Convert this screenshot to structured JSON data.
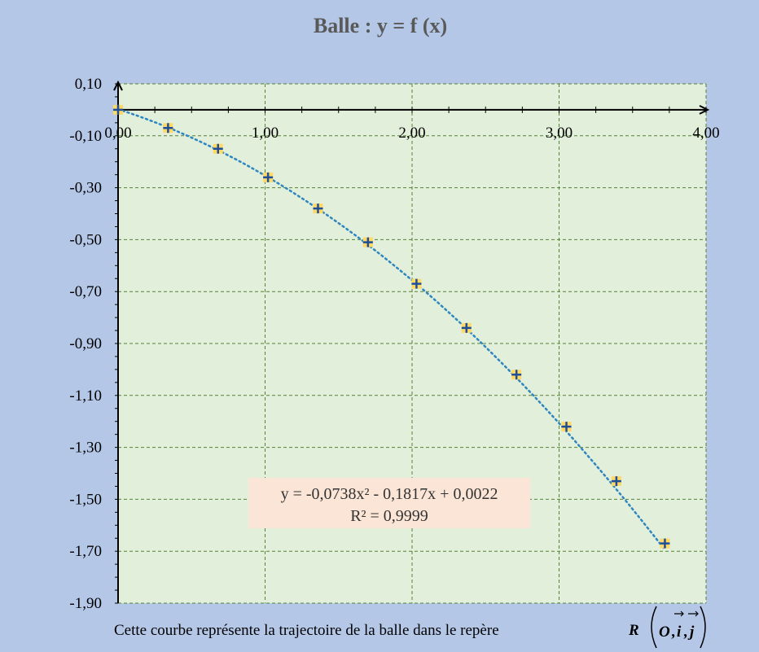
{
  "chart_data": {
    "type": "scatter",
    "title": "Balle : y = f (x)",
    "xlabel": "",
    "ylabel": "",
    "xlim": [
      0,
      4
    ],
    "ylim": [
      -1.9,
      0.1
    ],
    "x_ticks": [
      "0,00",
      "1,00",
      "2,00",
      "3,00",
      "4,00"
    ],
    "y_ticks": [
      "0,10",
      "-0,10",
      "-0,30",
      "-0,50",
      "-0,70",
      "-0,90",
      "-1,10",
      "-1,30",
      "-1,50",
      "-1,70",
      "-1,90"
    ],
    "grid": true,
    "series": [
      {
        "x": [
          0.0,
          0.34,
          0.68,
          1.02,
          1.36,
          1.7,
          2.03,
          2.37,
          2.71,
          3.05,
          3.39,
          3.72
        ],
        "y": [
          0.0,
          -0.07,
          -0.15,
          -0.26,
          -0.38,
          -0.51,
          -0.67,
          -0.84,
          -1.02,
          -1.22,
          -1.43,
          -1.67
        ],
        "marker": "plus",
        "marker_color": "#1f4e99",
        "marker_fill": "#ffd966"
      }
    ],
    "trendline": {
      "type": "polynomial",
      "coefficients": [
        -0.0738,
        -0.1817,
        0.0022
      ],
      "style": "dotted",
      "color": "#2e86c1",
      "equation": "y = -0,0738x² - 0,1817x + 0,0022",
      "r_squared": "R² = 0,9999"
    }
  },
  "caption": "Cette courbe représente la trajectoire de la balle dans le repère",
  "frame_label": {
    "R": "R",
    "O": "O",
    "i": "i",
    "j": "j"
  },
  "colors": {
    "background": "#b4c7e7",
    "plot_area": "#e2efda",
    "grid": "#548235",
    "equation_box": "#fbe5d6"
  }
}
